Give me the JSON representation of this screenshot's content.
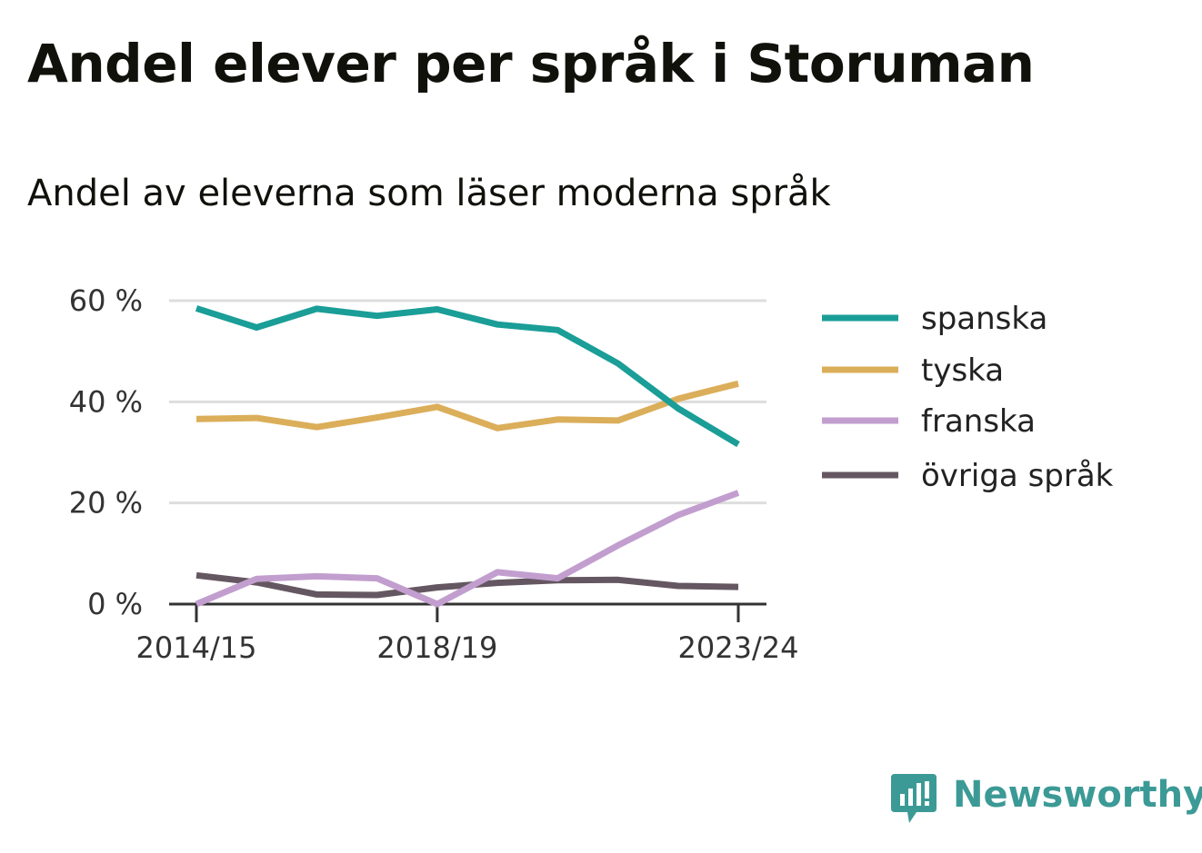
{
  "title": "Andel elever per språk i Storuman",
  "subtitle": "Andel av eleverna som läser moderna språk",
  "brand": {
    "name": "Newsworthy",
    "icon": "bar-chart-speech-bubble-icon",
    "color": "#3c9a96"
  },
  "chart_data": {
    "type": "line",
    "x": [
      "2014/15",
      "2015/16",
      "2016/17",
      "2017/18",
      "2018/19",
      "2019/20",
      "2020/21",
      "2021/22",
      "2022/23",
      "2023/24"
    ],
    "x_tick_labels": [
      "2014/15",
      "2018/19",
      "2023/24"
    ],
    "y_tick_labels": [
      "60 %",
      "40 %",
      "20 %",
      "0 %"
    ],
    "y_ticks": [
      60,
      40,
      20,
      0
    ],
    "ylim": [
      0,
      60
    ],
    "grid": true,
    "legend_position": "right",
    "series": [
      {
        "name": "spanska",
        "color": "#1a9e97",
        "values": [
          58.5,
          54.7,
          58.4,
          57.0,
          58.3,
          55.3,
          54.2,
          47.6,
          38.7,
          31.6
        ]
      },
      {
        "name": "tyska",
        "color": "#dbae5a",
        "values": [
          36.6,
          36.8,
          35.0,
          36.9,
          39.0,
          34.8,
          36.5,
          36.3,
          40.6,
          43.6
        ]
      },
      {
        "name": "franska",
        "color": "#c29ecf",
        "values": [
          0.0,
          5.0,
          5.5,
          5.1,
          0.0,
          6.3,
          5.1,
          11.6,
          17.6,
          22.0
        ]
      },
      {
        "name": "övriga språk",
        "color": "#655761",
        "values": [
          5.7,
          4.3,
          1.9,
          1.8,
          3.3,
          4.2,
          4.7,
          4.8,
          3.6,
          3.4
        ]
      }
    ]
  }
}
